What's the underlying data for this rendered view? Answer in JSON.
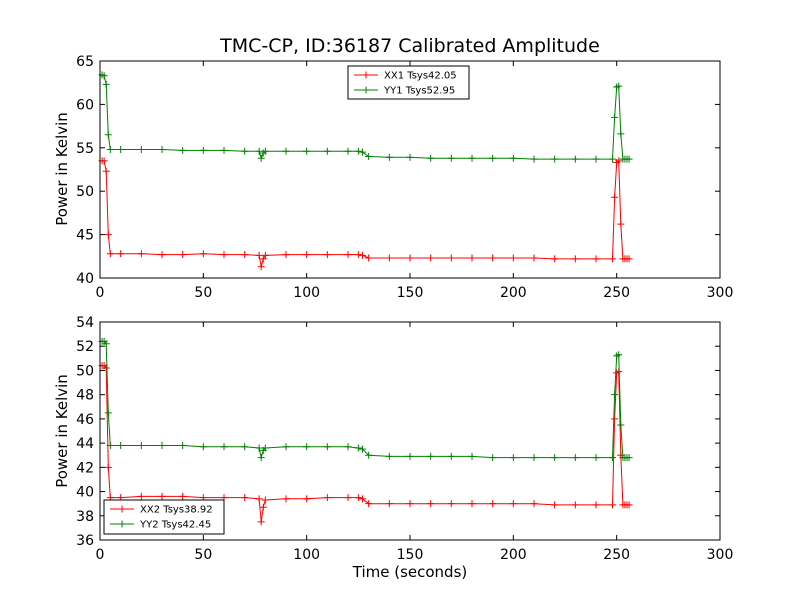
{
  "title": "TMC-CP, ID:36187 Calibrated Amplitude",
  "chart_data": [
    {
      "type": "line",
      "ylabel": "Power in Kelvin",
      "xlabel": "",
      "xlim": [
        0,
        300
      ],
      "ylim": [
        40,
        65
      ],
      "xticks": [
        0,
        50,
        100,
        150,
        200,
        250,
        300
      ],
      "yticks": [
        40,
        45,
        50,
        55,
        60,
        65
      ],
      "legend_position": "upper center",
      "series": [
        {
          "name": "XX1 Tsys42.05",
          "color": "#ff0000",
          "x": [
            1,
            2,
            3,
            4,
            5,
            10,
            20,
            30,
            40,
            50,
            60,
            70,
            77,
            78,
            79,
            80,
            90,
            100,
            110,
            120,
            125,
            127,
            130,
            140,
            150,
            160,
            170,
            180,
            190,
            200,
            210,
            220,
            230,
            240,
            248,
            249,
            250,
            251,
            252,
            253,
            254,
            255,
            256
          ],
          "y": [
            53.5,
            53.5,
            52.3,
            45.0,
            42.8,
            42.8,
            42.8,
            42.7,
            42.7,
            42.8,
            42.7,
            42.7,
            42.6,
            41.3,
            42.2,
            42.6,
            42.7,
            42.7,
            42.7,
            42.7,
            42.7,
            42.6,
            42.3,
            42.3,
            42.3,
            42.3,
            42.3,
            42.3,
            42.3,
            42.3,
            42.3,
            42.2,
            42.2,
            42.2,
            42.2,
            49.3,
            53.3,
            53.5,
            46.2,
            42.2,
            42.2,
            42.2,
            42.2
          ]
        },
        {
          "name": "YY1 Tsys52.95",
          "color": "#008000",
          "x": [
            1,
            2,
            3,
            4,
            5,
            10,
            20,
            30,
            40,
            50,
            60,
            70,
            77,
            78,
            79,
            80,
            90,
            100,
            110,
            120,
            125,
            127,
            130,
            140,
            150,
            160,
            170,
            180,
            190,
            200,
            210,
            220,
            230,
            240,
            248,
            249,
            250,
            251,
            252,
            253,
            254,
            255,
            256
          ],
          "y": [
            63.4,
            63.3,
            62.3,
            56.5,
            54.8,
            54.8,
            54.8,
            54.8,
            54.7,
            54.7,
            54.7,
            54.6,
            54.6,
            53.8,
            54.4,
            54.6,
            54.6,
            54.6,
            54.6,
            54.6,
            54.6,
            54.5,
            54.0,
            53.9,
            53.9,
            53.8,
            53.8,
            53.8,
            53.8,
            53.8,
            53.7,
            53.7,
            53.7,
            53.7,
            53.7,
            58.5,
            62.0,
            62.1,
            56.6,
            53.7,
            53.7,
            53.7,
            53.7
          ]
        }
      ]
    },
    {
      "type": "line",
      "ylabel": "Power in Kelvin",
      "xlabel": "Time (seconds)",
      "xlim": [
        0,
        300
      ],
      "ylim": [
        36,
        54
      ],
      "xticks": [
        0,
        50,
        100,
        150,
        200,
        250,
        300
      ],
      "yticks": [
        36,
        38,
        40,
        42,
        44,
        46,
        48,
        50,
        52,
        54
      ],
      "legend_position": "lower left",
      "series": [
        {
          "name": "XX2 Tsys38.92",
          "color": "#ff0000",
          "x": [
            1,
            2,
            3,
            4,
            5,
            10,
            20,
            30,
            40,
            50,
            60,
            70,
            77,
            78,
            79,
            80,
            90,
            100,
            110,
            120,
            125,
            127,
            130,
            140,
            150,
            160,
            170,
            180,
            190,
            200,
            210,
            220,
            230,
            240,
            248,
            249,
            250,
            251,
            252,
            253,
            254,
            255,
            256
          ],
          "y": [
            50.4,
            50.4,
            50.2,
            42.0,
            39.5,
            39.5,
            39.6,
            39.6,
            39.6,
            39.5,
            39.5,
            39.5,
            39.4,
            37.5,
            38.7,
            39.3,
            39.4,
            39.4,
            39.5,
            39.5,
            39.5,
            39.4,
            39.0,
            39.0,
            39.0,
            39.0,
            39.0,
            39.0,
            39.0,
            39.0,
            39.0,
            38.9,
            38.9,
            38.9,
            38.9,
            46.0,
            49.8,
            49.9,
            43.0,
            38.9,
            38.9,
            38.9,
            38.9
          ]
        },
        {
          "name": "YY2 Tsys42.45",
          "color": "#008000",
          "x": [
            1,
            2,
            3,
            4,
            5,
            10,
            20,
            30,
            40,
            50,
            60,
            70,
            77,
            78,
            79,
            80,
            90,
            100,
            110,
            120,
            125,
            127,
            130,
            140,
            150,
            160,
            170,
            180,
            190,
            200,
            210,
            220,
            230,
            240,
            248,
            249,
            250,
            251,
            252,
            253,
            254,
            255,
            256
          ],
          "y": [
            52.4,
            52.4,
            52.2,
            46.5,
            43.8,
            43.8,
            43.8,
            43.8,
            43.8,
            43.7,
            43.7,
            43.7,
            43.6,
            42.8,
            43.4,
            43.6,
            43.7,
            43.7,
            43.7,
            43.7,
            43.6,
            43.5,
            43.0,
            42.9,
            42.9,
            42.9,
            42.9,
            42.9,
            42.8,
            42.8,
            42.8,
            42.8,
            42.8,
            42.8,
            42.8,
            48.0,
            51.2,
            51.3,
            45.5,
            42.8,
            42.8,
            42.8,
            42.8
          ]
        }
      ]
    }
  ]
}
